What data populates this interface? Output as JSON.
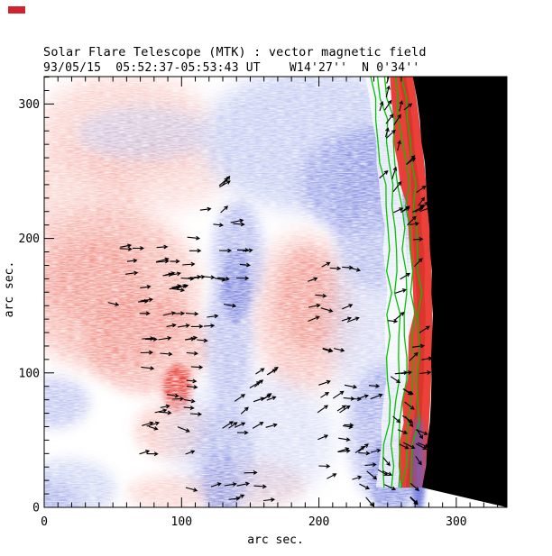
{
  "page": {
    "background": "#ffffff"
  },
  "annotation": {
    "marker_color": "#cf2430"
  },
  "chart_data": {
    "type": "heatmap",
    "title": "Solar Flare Telescope (MTK) : vector magnetic field",
    "subtitle": "93/05/15  05:52:37-05:53:43 UT    W14'27''  N 0'34''",
    "xlabel": "arc sec.",
    "ylabel": "arc sec.",
    "x_ticks": [
      0,
      100,
      200,
      300
    ],
    "y_ticks": [
      0,
      100,
      200,
      300
    ],
    "x_range": [
      0,
      337
    ],
    "y_range": [
      0,
      320
    ],
    "minor_tick_step": 10,
    "description": "Line-of-sight magnetogram: red = positive polarity, blue = negative polarity, black segments = transverse vector field, green lines = limb contours, black area = off-limb sky.",
    "colors": {
      "red_light": "#f5aca4",
      "red_med": "#ef7d72",
      "red_bright": "#e93a32",
      "blue_light": "#b4bdee",
      "blue_med": "#8790e2",
      "blue_deep": "#5b67d7",
      "crescent": "#ea372e",
      "crescent_streak": "#c8281f",
      "contour_green": "#00c400",
      "offlimb_black": "#000000",
      "axis": "#000000"
    },
    "blobs_format": "[cx,cy,rx,ry,colorKey,opacity,blur(1soft|2med|3sharp)]",
    "field_regions": [
      [
        90,
        55,
        95,
        58,
        "red_light",
        0.55,
        1
      ],
      [
        25,
        150,
        80,
        75,
        "red_light",
        0.5,
        1
      ],
      [
        128,
        108,
        75,
        40,
        "red_light",
        0.45,
        1
      ],
      [
        70,
        235,
        100,
        90,
        "red_light",
        0.85,
        1
      ],
      [
        60,
        228,
        55,
        48,
        "red_med",
        0.45,
        2
      ],
      [
        115,
        298,
        68,
        55,
        "red_med",
        0.5,
        2
      ],
      [
        148,
        346,
        16,
        27,
        "red_bright",
        0.9,
        3
      ],
      [
        142,
        392,
        42,
        32,
        "red_light",
        0.6,
        2
      ],
      [
        288,
        262,
        54,
        88,
        "red_light",
        0.75,
        1
      ],
      [
        292,
        248,
        34,
        55,
        "red_med",
        0.5,
        2
      ],
      [
        230,
        452,
        60,
        26,
        "red_light",
        0.5,
        2
      ],
      [
        140,
        462,
        48,
        20,
        "red_light",
        0.5,
        2
      ],
      [
        300,
        70,
        125,
        80,
        "blue_light",
        0.75,
        1
      ],
      [
        352,
        118,
        68,
        58,
        "blue_med",
        0.6,
        2
      ],
      [
        110,
        63,
        72,
        30,
        "blue_light",
        0.5,
        2
      ],
      [
        215,
        200,
        28,
        62,
        "blue_med",
        0.6,
        2
      ],
      [
        205,
        292,
        26,
        72,
        "blue_med",
        0.55,
        2
      ],
      [
        200,
        422,
        32,
        62,
        "blue_med",
        0.55,
        2
      ],
      [
        213,
        232,
        16,
        42,
        "blue_deep",
        0.45,
        3
      ],
      [
        196,
        458,
        18,
        46,
        "blue_deep",
        0.4,
        3
      ],
      [
        366,
        145,
        46,
        92,
        "blue_med",
        0.55,
        2
      ],
      [
        362,
        272,
        44,
        120,
        "blue_light",
        0.5,
        1
      ],
      [
        380,
        398,
        42,
        78,
        "blue_med",
        0.6,
        2
      ],
      [
        386,
        442,
        26,
        46,
        "blue_deep",
        0.5,
        3
      ],
      [
        10,
        362,
        40,
        28,
        "blue_med",
        0.5,
        2
      ],
      [
        25,
        458,
        55,
        34,
        "blue_light",
        0.6,
        2
      ],
      [
        2,
        472,
        36,
        24,
        "blue_med",
        0.45,
        2
      ],
      [
        230,
        402,
        92,
        72,
        "blue_light",
        0.45,
        1
      ],
      [
        392,
        62,
        10,
        72,
        "blue_light",
        0.55,
        3
      ],
      [
        415,
        432,
        7,
        56,
        "blue_deep",
        0.65,
        3
      ]
    ],
    "limb": {
      "top_x": 408,
      "mid_x": 429,
      "bottom_x": 417,
      "mid_y": 245,
      "crescent_width": 24
    },
    "contours": {
      "offsets_from_limb": [
        -46,
        -37,
        -29,
        -21,
        -13
      ]
    },
    "vector_clusters_format": "[x0,y0,x1,y1,count,angleDeg,jitterDeg]",
    "vector_clusters": [
      [
        70,
        190,
        165,
        268,
        22,
        0,
        14
      ],
      [
        152,
        148,
        238,
        268,
        20,
        0,
        12
      ],
      [
        100,
        262,
        192,
        368,
        22,
        2,
        10
      ],
      [
        100,
        328,
        178,
        412,
        13,
        0,
        22
      ],
      [
        198,
        330,
        262,
        392,
        16,
        28,
        18
      ],
      [
        294,
        212,
        352,
        308,
        15,
        5,
        25
      ],
      [
        298,
        342,
        378,
        452,
        26,
        12,
        26
      ],
      [
        342,
        422,
        398,
        478,
        10,
        -38,
        16
      ],
      [
        372,
        8,
        428,
        150,
        18,
        55,
        22
      ],
      [
        382,
        150,
        432,
        332,
        22,
        18,
        30
      ],
      [
        378,
        332,
        430,
        478,
        20,
        -42,
        24
      ],
      [
        188,
        122,
        216,
        168,
        4,
        42,
        18
      ],
      [
        150,
        380,
        235,
        472,
        6,
        6,
        28
      ],
      [
        196,
        455,
        258,
        478,
        5,
        4,
        20
      ]
    ]
  }
}
